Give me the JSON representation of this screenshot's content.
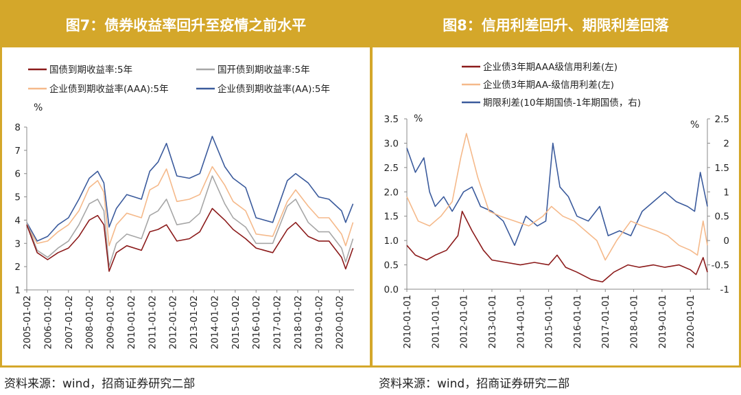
{
  "left": {
    "header": "图7：债券收益率回升至疫情之前水平",
    "source": "资料来源：wind，招商证券研究二部"
  },
  "right": {
    "header": "图8：信用利差回升、期限利差回落",
    "source": "资料来源：wind，招商证券研究二部"
  },
  "chart_data": [
    {
      "type": "line",
      "title": "图7：债券收益率回升至疫情之前水平",
      "ylabel": "%",
      "ylim": [
        1,
        8
      ],
      "yticks": [
        1,
        2,
        3,
        4,
        5,
        6,
        7,
        8
      ],
      "xlim": [
        2005.0,
        2020.7
      ],
      "xticks": [
        "2005-01-02",
        "2006-01-02",
        "2007-01-02",
        "2008-01-02",
        "2009-01-02",
        "2010-01-02",
        "2011-01-02",
        "2012-01-02",
        "2013-01-02",
        "2014-01-02",
        "2015-01-02",
        "2016-01-02",
        "2017-01-02",
        "2018-01-02",
        "2019-01-02",
        "2020-01-02"
      ],
      "legend": [
        "国债到期收益率:5年",
        "国开债到期收益率:5年",
        "企业债到期收益率(AAA):5年",
        "企业债到期收益率(AA):5年"
      ],
      "series": [
        {
          "name": "国债到期收益率:5年",
          "color": "#8b1a1a",
          "x": [
            2005.0,
            2005.5,
            2006.0,
            2006.5,
            2007.0,
            2007.5,
            2008.0,
            2008.4,
            2008.7,
            2008.95,
            2009.3,
            2009.8,
            2010.5,
            2010.9,
            2011.3,
            2011.7,
            2012.2,
            2012.8,
            2013.3,
            2013.9,
            2014.5,
            2014.9,
            2015.5,
            2016.0,
            2016.8,
            2017.5,
            2017.9,
            2018.5,
            2019.0,
            2019.5,
            2020.1,
            2020.3,
            2020.65
          ],
          "values": [
            3.8,
            2.6,
            2.3,
            2.6,
            2.8,
            3.3,
            4.0,
            4.2,
            3.8,
            1.8,
            2.6,
            2.9,
            2.7,
            3.5,
            3.6,
            3.8,
            3.1,
            3.2,
            3.5,
            4.5,
            4.0,
            3.6,
            3.2,
            2.8,
            2.6,
            3.6,
            3.9,
            3.3,
            3.1,
            3.1,
            2.4,
            1.9,
            2.8
          ]
        },
        {
          "name": "国开债到期收益率:5年",
          "color": "#a6a6a6",
          "x": [
            2005.0,
            2005.5,
            2006.0,
            2006.5,
            2007.0,
            2007.5,
            2008.0,
            2008.4,
            2008.7,
            2008.95,
            2009.3,
            2009.8,
            2010.5,
            2010.9,
            2011.3,
            2011.7,
            2012.2,
            2012.8,
            2013.3,
            2013.9,
            2014.5,
            2014.9,
            2015.5,
            2016.0,
            2016.8,
            2017.5,
            2017.9,
            2018.5,
            2019.0,
            2019.5,
            2020.1,
            2020.3,
            2020.65
          ],
          "values": [
            3.9,
            2.7,
            2.4,
            2.8,
            3.1,
            3.8,
            4.7,
            4.9,
            4.4,
            2.0,
            3.0,
            3.4,
            3.2,
            4.2,
            4.4,
            4.9,
            3.8,
            3.9,
            4.3,
            5.9,
            4.7,
            4.1,
            3.7,
            3.0,
            3.0,
            4.6,
            4.9,
            3.9,
            3.5,
            3.5,
            2.8,
            2.2,
            3.2
          ]
        },
        {
          "name": "企业债到期收益率(AAA):5年",
          "color": "#f5b98a",
          "x": [
            2005.0,
            2005.5,
            2006.0,
            2006.5,
            2007.0,
            2007.5,
            2008.0,
            2008.4,
            2008.7,
            2008.95,
            2009.3,
            2009.8,
            2010.5,
            2010.9,
            2011.3,
            2011.7,
            2012.2,
            2012.8,
            2013.3,
            2013.9,
            2014.5,
            2014.9,
            2015.5,
            2016.0,
            2016.8,
            2017.5,
            2017.9,
            2018.5,
            2019.0,
            2019.5,
            2020.1,
            2020.3,
            2020.65
          ],
          "values": [
            3.8,
            3.0,
            3.1,
            3.5,
            3.8,
            4.4,
            5.4,
            5.7,
            5.2,
            2.9,
            3.8,
            4.3,
            4.1,
            5.3,
            5.5,
            6.2,
            4.8,
            4.9,
            5.1,
            6.3,
            5.5,
            4.8,
            4.4,
            3.4,
            3.3,
            4.8,
            5.3,
            4.6,
            4.1,
            4.1,
            3.4,
            2.9,
            3.9
          ]
        },
        {
          "name": "企业债到期收益率(AA):5年",
          "color": "#3a5a9c",
          "x": [
            2005.0,
            2005.5,
            2006.0,
            2006.5,
            2007.0,
            2007.5,
            2008.0,
            2008.4,
            2008.7,
            2008.95,
            2009.3,
            2009.8,
            2010.5,
            2010.9,
            2011.3,
            2011.7,
            2012.2,
            2012.8,
            2013.3,
            2013.9,
            2014.5,
            2014.9,
            2015.5,
            2016.0,
            2016.8,
            2017.5,
            2017.9,
            2018.5,
            2019.0,
            2019.5,
            2020.1,
            2020.3,
            2020.65
          ],
          "values": [
            3.9,
            3.1,
            3.3,
            3.8,
            4.1,
            4.9,
            5.8,
            6.1,
            5.6,
            3.7,
            4.5,
            5.1,
            4.9,
            6.1,
            6.5,
            7.3,
            5.9,
            5.8,
            6.0,
            7.6,
            6.3,
            5.8,
            5.4,
            4.1,
            3.9,
            5.7,
            6.0,
            5.6,
            5.0,
            4.9,
            4.4,
            3.9,
            4.7
          ]
        }
      ]
    },
    {
      "type": "line",
      "title": "图8：信用利差回升、期限利差回落",
      "ylabel_left": "%",
      "ylabel_right": "%",
      "ylim_left": [
        0,
        3.5
      ],
      "ylim_right": [
        -1,
        2.5
      ],
      "yticks_left": [
        "0.0",
        "0.5",
        "1.0",
        "1.5",
        "2.0",
        "2.5",
        "3.0",
        "3.5"
      ],
      "yticks_right": [
        "-1",
        "-0.5",
        "0",
        "0.5",
        "1",
        "1.5",
        "2",
        "2.5"
      ],
      "xlim": [
        2010.0,
        2020.6
      ],
      "xticks": [
        "2010-01-01",
        "2011-01-01",
        "2012-01-01",
        "2013-01-01",
        "2014-01-01",
        "2015-01-01",
        "2016-01-01",
        "2017-01-01",
        "2018-01-01",
        "2019-01-01",
        "2020-01-01"
      ],
      "legend": [
        "企业债3年期AAA级信用利差(左)",
        "企业债3年期AA-级信用利差(左)",
        "期限利差(10年期国债-1年期国债，右)"
      ],
      "series": [
        {
          "name": "企业债3年期AAA级信用利差(左)",
          "color": "#8b1a1a",
          "axis": "left",
          "x": [
            2010.0,
            2010.3,
            2010.7,
            2011.0,
            2011.4,
            2011.8,
            2011.95,
            2012.3,
            2012.7,
            2013.0,
            2013.5,
            2014.0,
            2014.5,
            2015.0,
            2015.3,
            2015.6,
            2016.0,
            2016.5,
            2016.9,
            2017.3,
            2017.8,
            2018.2,
            2018.7,
            2019.1,
            2019.6,
            2020.0,
            2020.2,
            2020.45,
            2020.6
          ],
          "values": [
            0.9,
            0.7,
            0.6,
            0.7,
            0.8,
            1.1,
            1.6,
            1.2,
            0.8,
            0.6,
            0.55,
            0.5,
            0.55,
            0.5,
            0.7,
            0.45,
            0.35,
            0.2,
            0.15,
            0.35,
            0.5,
            0.45,
            0.5,
            0.45,
            0.5,
            0.4,
            0.3,
            0.65,
            0.35
          ]
        },
        {
          "name": "企业债3年期AA-级信用利差(左)",
          "color": "#f5b98a",
          "axis": "left",
          "x": [
            2010.0,
            2010.4,
            2010.8,
            2011.2,
            2011.6,
            2011.9,
            2012.1,
            2012.5,
            2012.9,
            2013.3,
            2013.8,
            2014.3,
            2014.8,
            2015.1,
            2015.5,
            2015.9,
            2016.3,
            2016.7,
            2017.0,
            2017.4,
            2017.9,
            2018.3,
            2018.8,
            2019.2,
            2019.6,
            2020.0,
            2020.25,
            2020.45,
            2020.6
          ],
          "values": [
            1.9,
            1.4,
            1.3,
            1.5,
            1.8,
            2.7,
            3.2,
            2.3,
            1.6,
            1.5,
            1.4,
            1.3,
            1.5,
            1.7,
            1.5,
            1.4,
            1.2,
            1.0,
            0.6,
            1.0,
            1.4,
            1.3,
            1.2,
            1.1,
            0.9,
            0.8,
            0.7,
            1.4,
            0.9
          ]
        },
        {
          "name": "期限利差(10年期国债-1年期国债，右)",
          "color": "#3a5a9c",
          "axis": "right",
          "x": [
            2010.0,
            2010.3,
            2010.6,
            2010.8,
            2011.0,
            2011.3,
            2011.6,
            2012.0,
            2012.3,
            2012.6,
            2013.0,
            2013.4,
            2013.8,
            2014.2,
            2014.6,
            2014.9,
            2015.15,
            2015.4,
            2015.7,
            2016.0,
            2016.4,
            2016.8,
            2017.1,
            2017.5,
            2017.9,
            2018.3,
            2018.7,
            2019.1,
            2019.5,
            2019.9,
            2020.15,
            2020.35,
            2020.6
          ],
          "values": [
            1.9,
            1.4,
            1.7,
            1.0,
            0.7,
            0.9,
            0.6,
            1.0,
            1.1,
            0.7,
            0.6,
            0.4,
            -0.1,
            0.5,
            0.3,
            0.4,
            2.0,
            1.1,
            0.9,
            0.5,
            0.4,
            0.7,
            0.1,
            0.2,
            0.1,
            0.6,
            0.8,
            1.0,
            0.8,
            0.7,
            0.6,
            1.4,
            0.7
          ]
        }
      ]
    }
  ]
}
